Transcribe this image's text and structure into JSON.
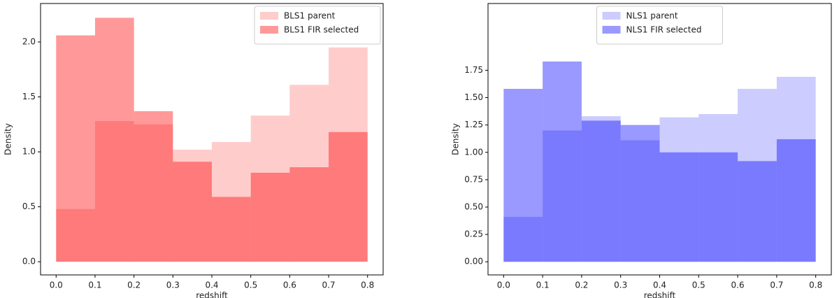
{
  "chart_data": [
    {
      "type": "histogram",
      "xlabel": "redshift",
      "ylabel": "Density",
      "bins": [
        0.0,
        0.1,
        0.2,
        0.3,
        0.4,
        0.5,
        0.6,
        0.7,
        0.8
      ],
      "series": [
        {
          "name": "BLS1 parent",
          "color": "red",
          "alpha": 0.2,
          "values": [
            0.48,
            1.28,
            1.25,
            1.02,
            1.09,
            1.33,
            1.61,
            1.95
          ]
        },
        {
          "name": "BLS1 FIR selected",
          "color": "red",
          "alpha": 0.4,
          "values": [
            2.06,
            2.22,
            1.37,
            0.91,
            0.59,
            0.81,
            0.86,
            1.18
          ]
        }
      ],
      "xlim": [
        -0.04,
        0.84
      ],
      "ylim": [
        -0.12,
        2.35
      ],
      "xticks": [
        {
          "value": 0.0,
          "label": "0.0"
        },
        0.1,
        0.2,
        0.3,
        0.4,
        0.5,
        0.6,
        0.7,
        0.8
      ],
      "yticks": [
        {
          "value": 0.0,
          "label": "0.0"
        },
        0.5,
        {
          "value": 1.0,
          "label": "1.0"
        },
        1.5,
        {
          "value": 2.0,
          "label": "2.0"
        }
      ],
      "legend": "upper right"
    },
    {
      "type": "histogram",
      "xlabel": "redshift",
      "ylabel": "Density",
      "bins": [
        0.0,
        0.1,
        0.2,
        0.3,
        0.4,
        0.5,
        0.6,
        0.7,
        0.8
      ],
      "series": [
        {
          "name": "NLS1 parent",
          "color": "blue",
          "alpha": 0.2,
          "values": [
            0.41,
            1.2,
            1.33,
            1.11,
            1.32,
            1.35,
            1.58,
            1.69
          ]
        },
        {
          "name": "NLS1 FIR selected",
          "color": "blue",
          "alpha": 0.4,
          "values": [
            1.58,
            1.83,
            1.29,
            1.25,
            1.0,
            1.0,
            0.92,
            1.12
          ]
        }
      ],
      "xlim": [
        -0.04,
        0.84
      ],
      "ylim": [
        -0.12,
        2.36
      ],
      "xticks": [
        {
          "value": 0.0,
          "label": "0.0"
        },
        0.1,
        0.2,
        0.3,
        0.4,
        0.5,
        0.6,
        0.7,
        0.8
      ],
      "yticks": [
        {
          "value": 0.0,
          "label": "0.00"
        },
        0.25,
        {
          "value": 0.5,
          "label": "0.50"
        },
        0.75,
        {
          "value": 1.0,
          "label": "1.00"
        },
        1.25,
        {
          "value": 1.5,
          "label": "1.50"
        },
        1.75
      ],
      "legend": "upper center"
    }
  ]
}
